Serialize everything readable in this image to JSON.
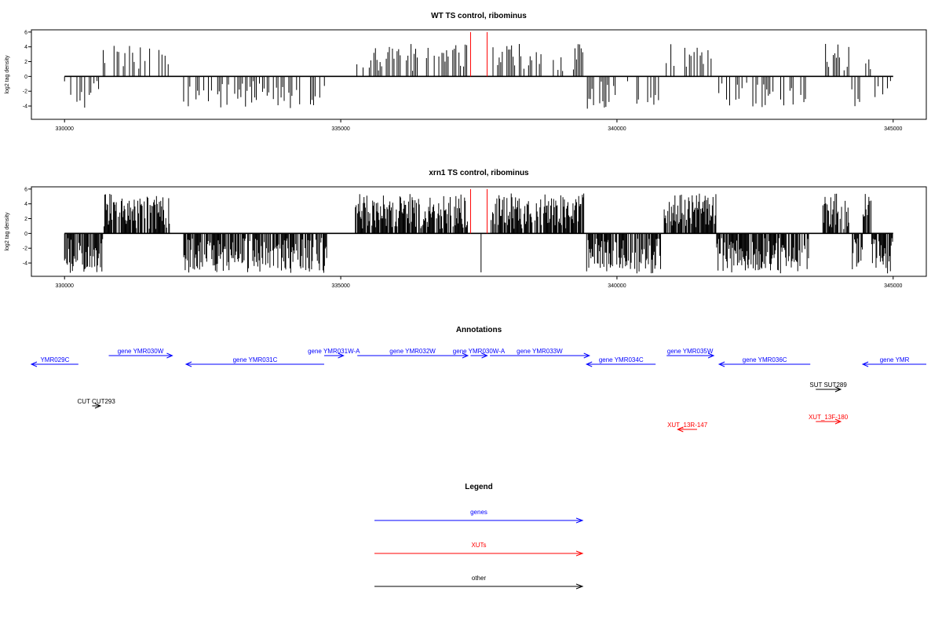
{
  "chart_data": [
    {
      "type": "bar",
      "title": "WT TS control, ribominus",
      "ylabel": "log2 tag density",
      "xlim": [
        329400,
        345600
      ],
      "ylim": [
        -5.8,
        6.3
      ],
      "x_ticks": [
        330000,
        335000,
        340000,
        345000
      ],
      "y_ticks": [
        -4,
        -2,
        0,
        2,
        4,
        6
      ],
      "baseline_range": [
        330000,
        345000
      ],
      "marker_lines": {
        "color": "#ff0000",
        "x": [
          337350,
          337650
        ],
        "ytop": 6
      }
    },
    {
      "type": "bar",
      "title": "xrn1 TS control, ribominus",
      "ylabel": "log2 tag density",
      "xlim": [
        329400,
        345600
      ],
      "ylim": [
        -5.8,
        6.3
      ],
      "x_ticks": [
        330000,
        335000,
        340000,
        345000
      ],
      "y_ticks": [
        -4,
        -2,
        0,
        2,
        4,
        6
      ],
      "baseline_range": [
        330000,
        345000
      ],
      "marker_lines": {
        "color": "#ff0000",
        "x": [
          337350,
          337650
        ],
        "ytop": 6
      }
    }
  ],
  "annotations": {
    "title": "Annotations",
    "colors": {
      "genes": "#0000ff",
      "XUTs": "#ff0000",
      "other": "#000000"
    },
    "features": [
      {
        "label": "YMR029C",
        "start": 329400,
        "end": 330250,
        "strand": "-",
        "cat": "genes",
        "row": 1
      },
      {
        "label": "gene YMR030W",
        "start": 330800,
        "end": 331950,
        "strand": "+",
        "cat": "genes",
        "row": 0
      },
      {
        "label": "gene YMR031C",
        "start": 332200,
        "end": 334700,
        "strand": "-",
        "cat": "genes",
        "row": 1
      },
      {
        "label": "gene YMR031W-A",
        "start": 334700,
        "end": 335050,
        "strand": "+",
        "cat": "genes",
        "row": 0
      },
      {
        "label": "gene YMR032W",
        "start": 335300,
        "end": 337300,
        "strand": "+",
        "cat": "genes",
        "row": 0
      },
      {
        "label": "gene YMR030W-A",
        "start": 337350,
        "end": 337650,
        "strand": "+",
        "cat": "genes",
        "row": 0
      },
      {
        "label": "gene YMR033W",
        "start": 337700,
        "end": 339500,
        "strand": "+",
        "cat": "genes",
        "row": 0
      },
      {
        "label": "gene YMR034C",
        "start": 339450,
        "end": 340700,
        "strand": "-",
        "cat": "genes",
        "row": 1
      },
      {
        "label": "gene YMR035W",
        "start": 340900,
        "end": 341750,
        "strand": "+",
        "cat": "genes",
        "row": 0
      },
      {
        "label": "gene YMR036C",
        "start": 341850,
        "end": 343500,
        "strand": "-",
        "cat": "genes",
        "row": 1
      },
      {
        "label": "gene YMR",
        "start": 344450,
        "end": 345600,
        "strand": "-",
        "cat": "genes",
        "row": 1
      },
      {
        "label": "SUT SUT289",
        "start": 343600,
        "end": 344050,
        "strand": "+",
        "cat": "other",
        "row": 2
      },
      {
        "label": "CUT CUT293",
        "start": 330500,
        "end": 330650,
        "strand": "+",
        "cat": "other",
        "row": 3
      },
      {
        "label": "XUT_13F-180",
        "start": 343600,
        "end": 344050,
        "strand": "+",
        "cat": "XUTs",
        "row": 4
      },
      {
        "label": "XUT_13R-147",
        "start": 341100,
        "end": 341450,
        "strand": "-",
        "cat": "XUTs",
        "row": 5
      }
    ]
  },
  "legend": {
    "title": "Legend",
    "items": [
      {
        "label": "genes",
        "color": "#0000ff"
      },
      {
        "label": "XUTs",
        "color": "#ff0000"
      },
      {
        "label": "other",
        "color": "#000000"
      }
    ]
  }
}
